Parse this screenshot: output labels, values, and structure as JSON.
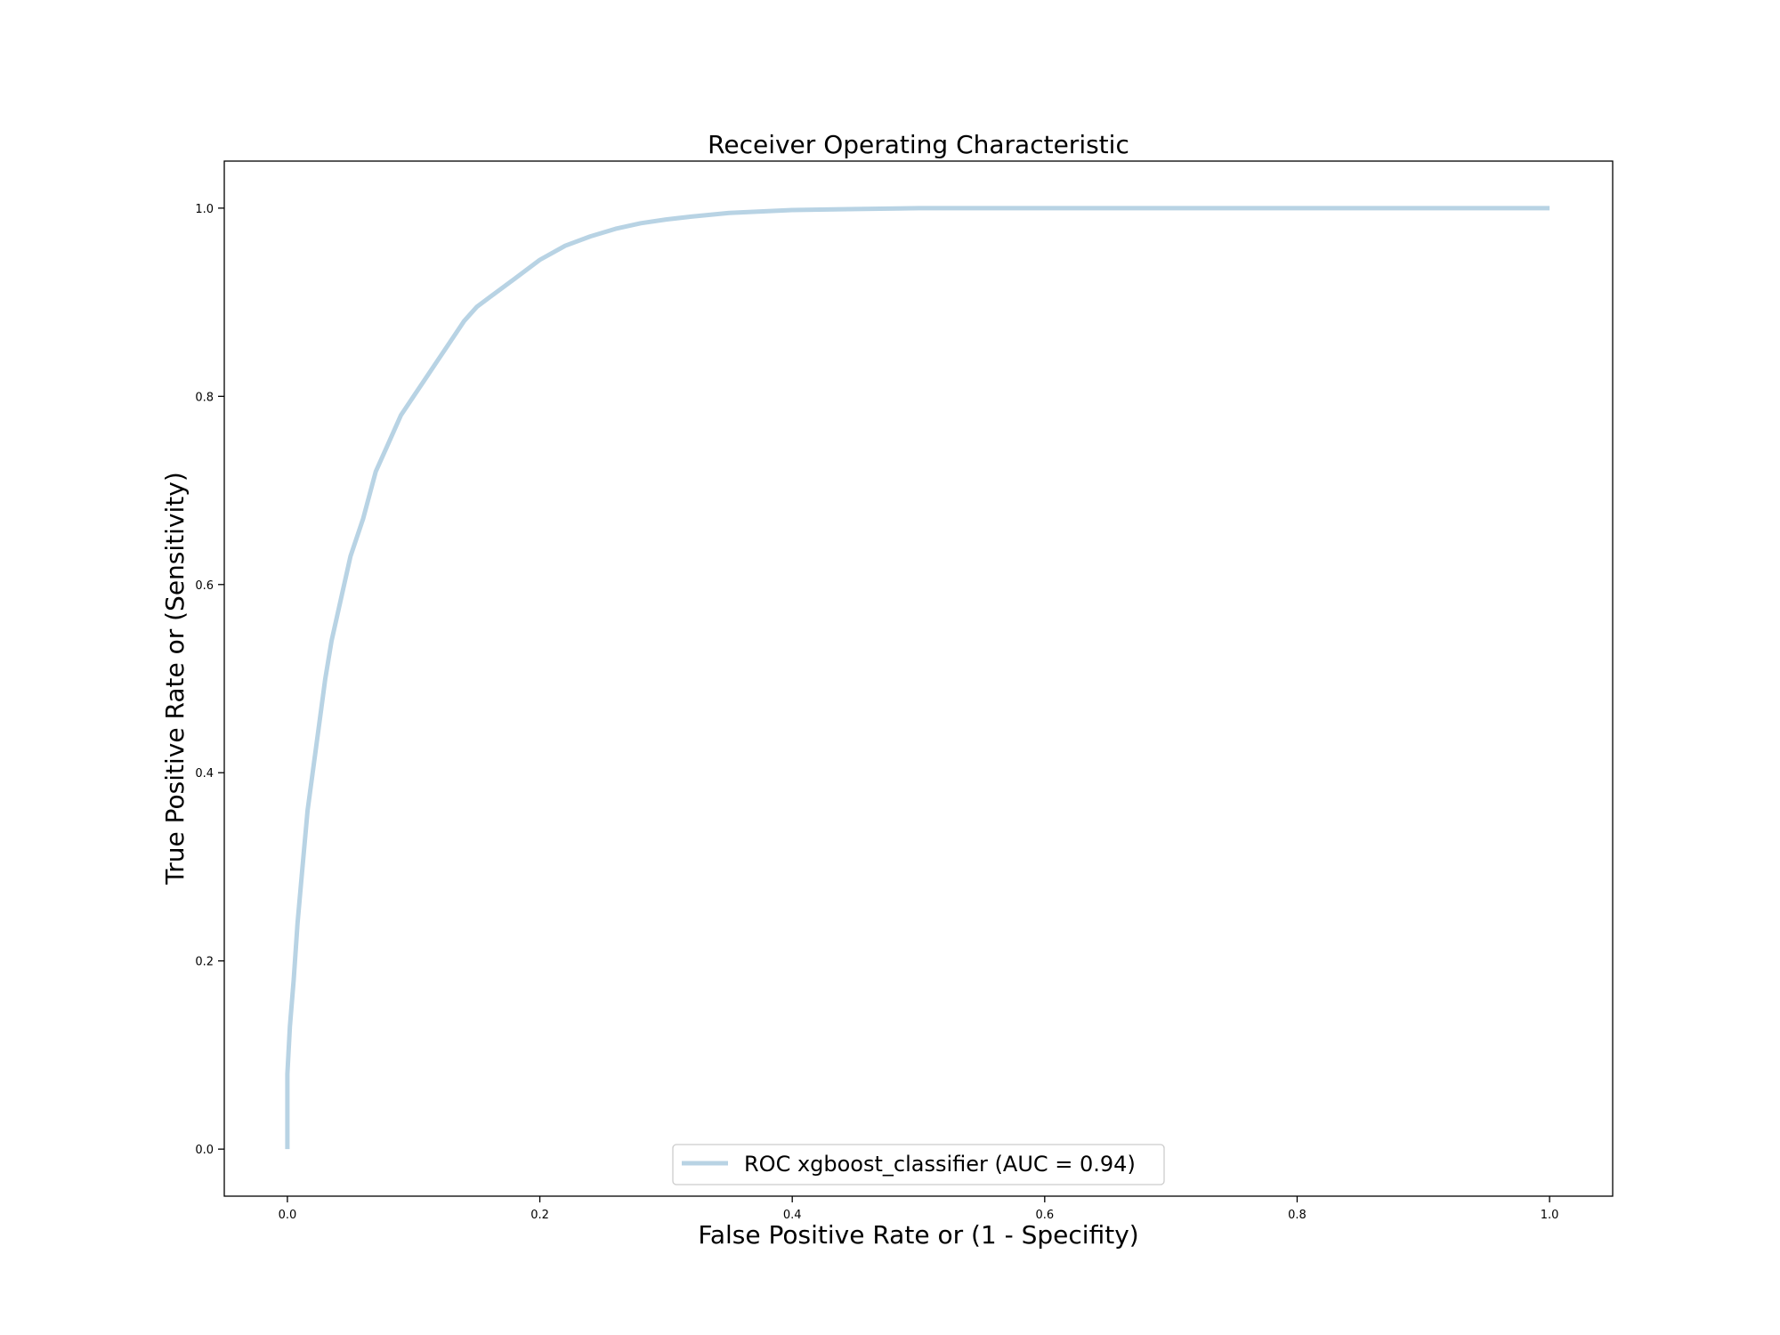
{
  "chart_data": {
    "type": "line",
    "title": "Receiver Operating Characteristic",
    "xlabel": "False Positive Rate or (1 - Specifity)",
    "ylabel": "True Positive Rate or (Sensitivity)",
    "xlim": [
      -0.05,
      1.05
    ],
    "ylim": [
      -0.05,
      1.05
    ],
    "xticks": [
      0.0,
      0.2,
      0.4,
      0.6,
      0.8,
      1.0
    ],
    "yticks": [
      0.0,
      0.2,
      0.4,
      0.6,
      0.8,
      1.0
    ],
    "xtick_labels": [
      "0.0",
      "0.2",
      "0.4",
      "0.6",
      "0.8",
      "1.0"
    ],
    "ytick_labels": [
      "0.0",
      "0.2",
      "0.4",
      "0.6",
      "0.8",
      "1.0"
    ],
    "grid": false,
    "legend_position": "lower-center",
    "series": [
      {
        "name": "ROC xgboost_classifier (AUC = 0.94)",
        "color": "#b8d3e4",
        "x": [
          0.0,
          0.0,
          0.002,
          0.005,
          0.008,
          0.012,
          0.016,
          0.02,
          0.025,
          0.03,
          0.035,
          0.04,
          0.045,
          0.05,
          0.06,
          0.07,
          0.08,
          0.09,
          0.1,
          0.11,
          0.12,
          0.13,
          0.14,
          0.15,
          0.16,
          0.18,
          0.2,
          0.22,
          0.24,
          0.26,
          0.28,
          0.3,
          0.32,
          0.35,
          0.4,
          0.45,
          0.5,
          0.6,
          0.8,
          1.0
        ],
        "y": [
          0.0,
          0.08,
          0.13,
          0.18,
          0.24,
          0.3,
          0.36,
          0.4,
          0.45,
          0.5,
          0.54,
          0.57,
          0.6,
          0.63,
          0.67,
          0.72,
          0.75,
          0.78,
          0.8,
          0.82,
          0.84,
          0.86,
          0.88,
          0.895,
          0.905,
          0.925,
          0.945,
          0.96,
          0.97,
          0.978,
          0.984,
          0.988,
          0.991,
          0.995,
          0.998,
          0.999,
          1.0,
          1.0,
          1.0,
          1.0
        ]
      }
    ]
  }
}
